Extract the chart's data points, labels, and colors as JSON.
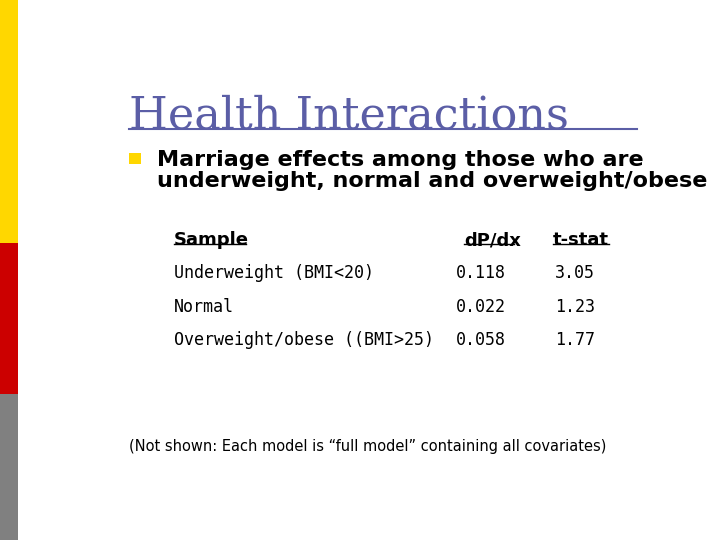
{
  "title": "Health Interactions",
  "title_color": "#5B5EA6",
  "title_fontsize": 32,
  "bullet_text_line1": "Marriage effects among those who are",
  "bullet_text_line2": "underweight, normal and overweight/obese",
  "bullet_square_color": "#FFD700",
  "left_bar_colors": [
    "#FFD700",
    "#CC0000",
    "#808080"
  ],
  "table_headers": [
    "Sample",
    "dP/dx",
    "t-stat"
  ],
  "table_rows": [
    [
      "Underweight (BMI<20)",
      "0.118",
      "3.05"
    ],
    [
      "Normal",
      "0.022",
      "1.23"
    ],
    [
      "Overweight/obese ((BMI>25)",
      "0.058",
      "1.77"
    ]
  ],
  "footnote": "(Not shown: Each model is “full model” containing all covariates)",
  "bg_color": "#FFFFFF",
  "text_color": "#000000",
  "hr_color": "#5B5EA6",
  "table_header_fontsize": 13,
  "table_row_fontsize": 12,
  "footnote_fontsize": 10.5
}
